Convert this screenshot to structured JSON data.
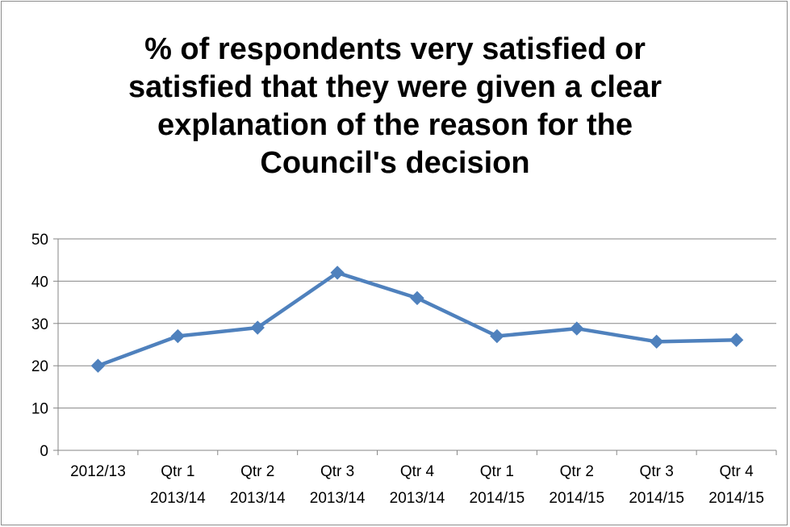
{
  "chart_data": {
    "type": "line",
    "title_lines": [
      "% of respondents very satisfied or",
      "satisfied that they were given a clear",
      "explanation of the reason for the",
      "Council's decision"
    ],
    "categories": [
      [
        "2012/13"
      ],
      [
        "Qtr 1",
        "2013/14"
      ],
      [
        "Qtr 2",
        "2013/14"
      ],
      [
        "Qtr 3",
        "2013/14"
      ],
      [
        "Qtr 4",
        "2013/14"
      ],
      [
        "Qtr 1",
        "2014/15"
      ],
      [
        "Qtr 2",
        "2014/15"
      ],
      [
        "Qtr 3",
        "2014/15"
      ],
      [
        "Qtr 4",
        "2014/15"
      ]
    ],
    "series": [
      {
        "values": [
          20,
          27,
          29,
          42,
          36,
          27,
          28.8,
          25.7,
          26.1
        ]
      }
    ],
    "ylim": [
      0,
      50
    ],
    "yticks": [
      0,
      10,
      20,
      30,
      40,
      50
    ],
    "grid": true,
    "legend": "none",
    "line_color": "#4f81bd",
    "grid_color": "#868686"
  }
}
